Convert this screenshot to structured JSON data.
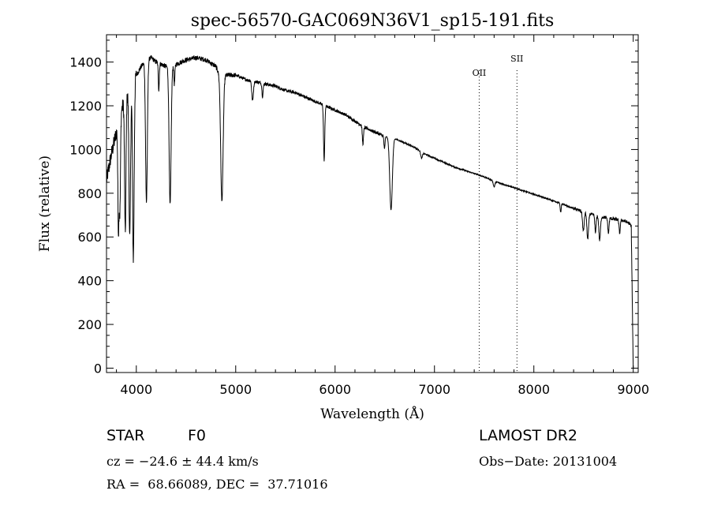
{
  "chart_data": {
    "type": "line",
    "title": "spec-56570-GAC069N36V1_sp15-191.fits",
    "xlabel": "Wavelength (Å)",
    "ylabel": "Flux (relative)",
    "xlim": [
      3700,
      9050
    ],
    "ylim": [
      -20,
      1525
    ],
    "xticks": [
      4000,
      5000,
      6000,
      7000,
      8000,
      9000
    ],
    "yticks": [
      0,
      200,
      400,
      600,
      800,
      1000,
      1200,
      1400
    ],
    "grid": false,
    "line_color": "#000000",
    "continuum": [
      [
        3700,
        860
      ],
      [
        3750,
        980
      ],
      [
        3800,
        1080
      ],
      [
        3850,
        1180
      ],
      [
        3900,
        1250
      ],
      [
        3950,
        1310
      ],
      [
        4000,
        1340
      ],
      [
        4050,
        1380
      ],
      [
        4100,
        1410
      ],
      [
        4150,
        1420
      ],
      [
        4200,
        1400
      ],
      [
        4300,
        1380
      ],
      [
        4400,
        1390
      ],
      [
        4500,
        1410
      ],
      [
        4600,
        1420
      ],
      [
        4700,
        1410
      ],
      [
        4800,
        1380
      ],
      [
        4850,
        1330
      ],
      [
        4900,
        1340
      ],
      [
        5000,
        1340
      ],
      [
        5100,
        1320
      ],
      [
        5200,
        1310
      ],
      [
        5300,
        1300
      ],
      [
        5400,
        1290
      ],
      [
        5500,
        1270
      ],
      [
        5600,
        1260
      ],
      [
        5700,
        1240
      ],
      [
        5800,
        1220
      ],
      [
        5900,
        1200
      ],
      [
        6000,
        1180
      ],
      [
        6100,
        1160
      ],
      [
        6200,
        1130
      ],
      [
        6300,
        1100
      ],
      [
        6400,
        1080
      ],
      [
        6500,
        1060
      ],
      [
        6600,
        1050
      ],
      [
        6700,
        1030
      ],
      [
        6800,
        1010
      ],
      [
        6900,
        980
      ],
      [
        7000,
        960
      ],
      [
        7100,
        940
      ],
      [
        7200,
        920
      ],
      [
        7300,
        905
      ],
      [
        7400,
        890
      ],
      [
        7500,
        875
      ],
      [
        7600,
        855
      ],
      [
        7700,
        840
      ],
      [
        7800,
        825
      ],
      [
        7900,
        810
      ],
      [
        8000,
        795
      ],
      [
        8100,
        780
      ],
      [
        8200,
        765
      ],
      [
        8300,
        748
      ],
      [
        8400,
        730
      ],
      [
        8500,
        715
      ],
      [
        8600,
        700
      ],
      [
        8700,
        690
      ],
      [
        8800,
        682
      ],
      [
        8900,
        675
      ],
      [
        8950,
        665
      ],
      [
        8980,
        650
      ],
      [
        9000,
        0
      ]
    ],
    "absorption_lines": [
      {
        "x": 3820,
        "depth": 480,
        "width": 6
      },
      {
        "x": 3835,
        "depth": 420,
        "width": 6
      },
      {
        "x": 3889,
        "depth": 620,
        "width": 7
      },
      {
        "x": 3934,
        "depth": 700,
        "width": 8
      },
      {
        "x": 3970,
        "depth": 820,
        "width": 8
      },
      {
        "x": 4102,
        "depth": 650,
        "width": 9
      },
      {
        "x": 4226,
        "depth": 120,
        "width": 5
      },
      {
        "x": 4340,
        "depth": 640,
        "width": 10
      },
      {
        "x": 4383,
        "depth": 90,
        "width": 5
      },
      {
        "x": 4861,
        "depth": 570,
        "width": 12
      },
      {
        "x": 5170,
        "depth": 90,
        "width": 8
      },
      {
        "x": 5270,
        "depth": 60,
        "width": 6
      },
      {
        "x": 5890,
        "depth": 250,
        "width": 6
      },
      {
        "x": 6280,
        "depth": 80,
        "width": 6
      },
      {
        "x": 6497,
        "depth": 60,
        "width": 5
      },
      {
        "x": 6563,
        "depth": 330,
        "width": 13
      },
      {
        "x": 6870,
        "depth": 30,
        "width": 8
      },
      {
        "x": 7600,
        "depth": 25,
        "width": 8
      },
      {
        "x": 8270,
        "depth": 40,
        "width": 5
      },
      {
        "x": 8498,
        "depth": 90,
        "width": 8
      },
      {
        "x": 8542,
        "depth": 120,
        "width": 8
      },
      {
        "x": 8620,
        "depth": 80,
        "width": 6
      },
      {
        "x": 8662,
        "depth": 110,
        "width": 8
      },
      {
        "x": 8750,
        "depth": 70,
        "width": 6
      },
      {
        "x": 8863,
        "depth": 60,
        "width": 6
      }
    ],
    "annotations": [
      {
        "label": "OII",
        "x": 7450
      },
      {
        "label": "SII",
        "x": 7830
      }
    ]
  },
  "info": {
    "object_class": "STAR",
    "subclass": "F0",
    "cz": "cz = −24.6 ± 44.4 km/s",
    "coords": "RA =  68.66089, DEC =  37.71016",
    "survey": "LAMOST DR2",
    "obs_date": "Obs−Date: 20131004"
  }
}
